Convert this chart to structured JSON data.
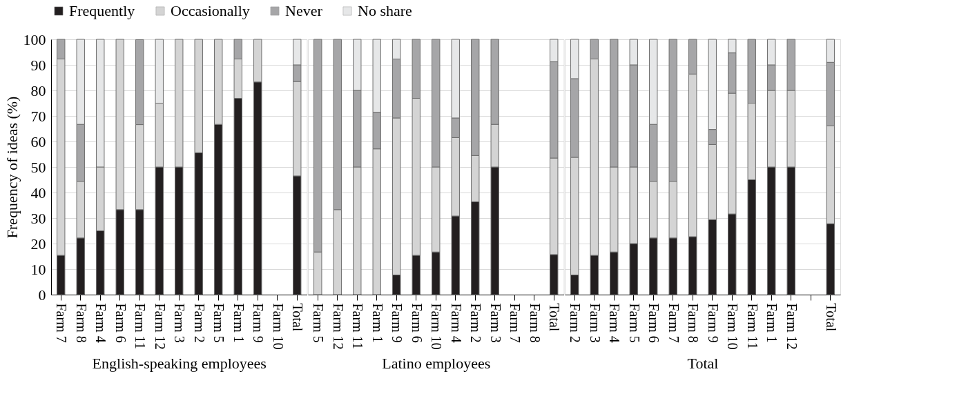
{
  "chart_data": [
    {
      "type": "bar",
      "stacked": true,
      "legend": "top",
      "grid": "y",
      "ylabel": "Frequency of ideas (%)",
      "xlabel": "English-speaking employees",
      "ylim": [
        0,
        100
      ],
      "yticks": [
        0,
        10,
        20,
        30,
        40,
        50,
        60,
        70,
        80,
        90,
        100
      ],
      "categories": [
        "Farm 7",
        "Farm 8",
        "Farm 4",
        "Farm 6",
        "Farm 11",
        "Farm 12",
        "Farm 3",
        "Farm 2",
        "Farm 5",
        "Farm 1",
        "Farm 9",
        "Farm 10",
        "Total"
      ],
      "series": [
        {
          "name": "Frequently",
          "color": "#231f20",
          "values": [
            15.4,
            22.2,
            25,
            33.3,
            33.3,
            50,
            50,
            55.6,
            66.7,
            76.9,
            83.3,
            null,
            46.5
          ]
        },
        {
          "name": "Occasionally",
          "color": "#d4d4d4",
          "values": [
            76.9,
            22.2,
            25,
            66.7,
            33.3,
            25,
            50,
            44.4,
            33.3,
            15.4,
            16.7,
            null,
            37
          ]
        },
        {
          "name": "Never",
          "color": "#a6a6a8",
          "values": [
            7.7,
            22.3,
            0,
            0,
            33.3,
            0,
            0,
            0,
            0,
            7.7,
            0,
            null,
            6.5
          ]
        },
        {
          "name": "No share",
          "color": "#e6e7e8",
          "values": [
            0,
            33.3,
            50,
            0,
            0,
            25,
            0,
            0,
            0,
            0,
            0,
            null,
            10
          ]
        }
      ]
    },
    {
      "type": "bar",
      "stacked": true,
      "legend": "top",
      "grid": "y",
      "tick_labels": "x",
      "xlabel": "Latino employees",
      "ylim": [
        0,
        100
      ],
      "yticks": [
        0,
        10,
        20,
        30,
        40,
        50,
        60,
        70,
        80,
        90,
        100
      ],
      "categories": [
        "Farm 5",
        "Farm 12",
        "Farm 11",
        "Farm 1",
        "Farm 9",
        "Farm 6",
        "Farm 10",
        "Farm 4",
        "Farm 2",
        "Farm 3",
        "Farm 7",
        "Farm 8",
        "Total"
      ],
      "series": [
        {
          "name": "Frequently",
          "color": "#231f20",
          "values": [
            0,
            0,
            0,
            0,
            7.7,
            15.4,
            16.7,
            30.8,
            36.4,
            50,
            null,
            null,
            15.7
          ]
        },
        {
          "name": "Occasionally",
          "color": "#d4d4d4",
          "values": [
            16.7,
            33.3,
            50,
            57.1,
            61.5,
            61.5,
            33.3,
            30.7,
            18.1,
            16.7,
            null,
            null,
            37.8
          ]
        },
        {
          "name": "Never",
          "color": "#a6a6a8",
          "values": [
            83.3,
            66.7,
            30,
            14.3,
            23.1,
            23.1,
            50,
            7.7,
            45.5,
            33.3,
            null,
            null,
            37.7
          ]
        },
        {
          "name": "No share",
          "color": "#e6e7e8",
          "values": [
            0,
            0,
            20,
            28.6,
            7.7,
            0,
            0,
            30.8,
            0,
            0,
            null,
            null,
            8.8
          ]
        }
      ]
    },
    {
      "type": "bar",
      "stacked": true,
      "legend": "top",
      "grid": "y",
      "tick_labels": "x",
      "xlabel": "Total",
      "ylim": [
        0,
        100
      ],
      "yticks": [
        0,
        10,
        20,
        30,
        40,
        50,
        60,
        70,
        80,
        90,
        100
      ],
      "categories": [
        "Farm 2",
        "Farm 3",
        "Farm 4",
        "Farm 5",
        "Farm 6",
        "Farm 7",
        "Farm 8",
        "Farm 9",
        "Farm 10",
        "Farm 11",
        "Farm 1",
        "Farm 12",
        null,
        "Total"
      ],
      "series": [
        {
          "name": "Frequently",
          "color": "#231f20",
          "values": [
            7.7,
            15.4,
            16.7,
            20,
            22.2,
            22.2,
            22.7,
            29.4,
            31.6,
            45,
            50,
            50,
            null,
            27.8
          ]
        },
        {
          "name": "Occasionally",
          "color": "#d4d4d4",
          "values": [
            46.1,
            76.9,
            33.3,
            30,
            22.2,
            22.2,
            63.7,
            29.4,
            47.3,
            30,
            30,
            30,
            null,
            38.3
          ]
        },
        {
          "name": "Never",
          "color": "#a6a6a8",
          "values": [
            30.8,
            7.7,
            50,
            40,
            22.3,
            55.6,
            13.6,
            5.9,
            15.8,
            25,
            10,
            20,
            null,
            24.9
          ]
        },
        {
          "name": "No share",
          "color": "#e6e7e8",
          "values": [
            15.4,
            0,
            0,
            10,
            33.3,
            0,
            0,
            35.3,
            5.3,
            0,
            10,
            0,
            null,
            9
          ]
        }
      ]
    }
  ]
}
